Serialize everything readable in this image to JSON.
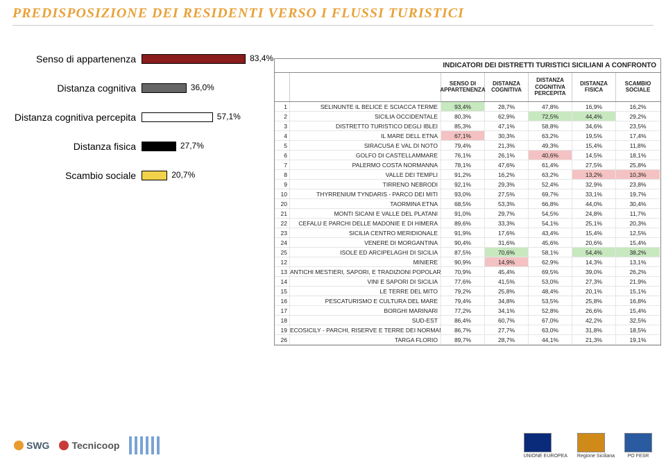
{
  "title": "PREDISPOSIZIONE DEI RESIDENTI VERSO I FLUSSI TURISTICI",
  "barchart": {
    "max": 100,
    "items": [
      {
        "label": "Senso di appartenenza",
        "value": 83.4,
        "text": "83,4%",
        "fill": "#8a1c1c"
      },
      {
        "label": "Distanza cognitiva",
        "value": 36.0,
        "text": "36,0%",
        "fill": "#666666"
      },
      {
        "label": "Distanza cognitiva percepita",
        "value": 57.1,
        "text": "57,1%",
        "fill": "#ffffff"
      },
      {
        "label": "Distanza fisica",
        "value": 27.7,
        "text": "27,7%",
        "fill": "#000000"
      },
      {
        "label": "Scambio sociale",
        "value": 20.7,
        "text": "20,7%",
        "fill": "#f2d24a"
      }
    ]
  },
  "table": {
    "title": "INDICATORI DEI DISTRETTI TURISTICI SICILIANI A CONFRONTO",
    "columns": [
      "",
      "",
      "SENSO DI APPARTENENZA",
      "DISTANZA COGNITIVA",
      "DISTANZA COGNITIVA PERCEPITA",
      "DISTANZA FISICA",
      "SCAMBIO SOCIALE"
    ],
    "hl_green": "#c8e8c0",
    "hl_red": "#f4c2c2",
    "rows": [
      {
        "n": 1,
        "name": "Selinunte il Belice e Sciacca Terme",
        "v": [
          "93,4%",
          "28,7%",
          "47,8%",
          "16,9%",
          "16,2%"
        ],
        "hl": {
          "0": "g"
        }
      },
      {
        "n": 2,
        "name": "Sicilia Occidentale",
        "v": [
          "80,3%",
          "62,9%",
          "72,5%",
          "44,4%",
          "29,2%"
        ],
        "hl": {
          "2": "g",
          "3": "g"
        }
      },
      {
        "n": 3,
        "name": "Distretto Turistico degli Iblei",
        "v": [
          "85,3%",
          "47,1%",
          "58,8%",
          "34,6%",
          "23,5%"
        ]
      },
      {
        "n": 4,
        "name": "Il Mare dell Etna",
        "v": [
          "67,1%",
          "30,3%",
          "63,2%",
          "19,5%",
          "17,4%"
        ],
        "hl": {
          "0": "r"
        }
      },
      {
        "n": 5,
        "name": "Siracusa e Val di Noto",
        "v": [
          "79,4%",
          "21,3%",
          "49,3%",
          "15,4%",
          "11,8%"
        ]
      },
      {
        "n": 6,
        "name": "Golfo di Castellammare",
        "v": [
          "76,1%",
          "26,1%",
          "40,6%",
          "14,5%",
          "18,1%"
        ],
        "hl": {
          "2": "r"
        }
      },
      {
        "n": 7,
        "name": "Palermo Costa Normanna",
        "v": [
          "78,1%",
          "47,6%",
          "61,4%",
          "27,5%",
          "25,8%"
        ]
      },
      {
        "n": 8,
        "name": "Valle dei Templi",
        "v": [
          "91,2%",
          "16,2%",
          "63,2%",
          "13,2%",
          "10,3%"
        ],
        "hl": {
          "3": "r",
          "4": "r"
        }
      },
      {
        "n": 9,
        "name": "Tirreno Nebrodi",
        "v": [
          "92,1%",
          "29,3%",
          "52,4%",
          "32,9%",
          "23,8%"
        ]
      },
      {
        "n": 10,
        "name": "Thyrrenium Tyndaris - Parco dei Miti",
        "v": [
          "93,0%",
          "27,5%",
          "69,7%",
          "33,1%",
          "19,7%"
        ]
      },
      {
        "n": 20,
        "name": "Taormina Etna",
        "v": [
          "68,5%",
          "53,3%",
          "66,8%",
          "44,0%",
          "30,4%"
        ]
      },
      {
        "n": 21,
        "name": "Monti Sicani e Valle del Platani",
        "v": [
          "91,0%",
          "29,7%",
          "54,5%",
          "24,8%",
          "11,7%"
        ]
      },
      {
        "n": 22,
        "name": "Cefalu e Parchi delle Madonie e di Himera",
        "v": [
          "89,6%",
          "33,3%",
          "54,1%",
          "25,1%",
          "20,3%"
        ]
      },
      {
        "n": 23,
        "name": "Sicilia Centro Meridionale",
        "v": [
          "91,9%",
          "17,6%",
          "43,4%",
          "15,4%",
          "12,5%"
        ]
      },
      {
        "n": 24,
        "name": "Venere di Morgantina",
        "v": [
          "90,4%",
          "31,6%",
          "45,6%",
          "20,6%",
          "15,4%"
        ]
      },
      {
        "n": 25,
        "name": "Isole ed Arcipelaghi di Sicilia",
        "v": [
          "87,5%",
          "70,6%",
          "58,1%",
          "54,4%",
          "38,2%"
        ],
        "hl": {
          "1": "g",
          "3": "g",
          "4": "g"
        }
      },
      {
        "n": 12,
        "name": "Miniere",
        "v": [
          "90,9%",
          "14,9%",
          "62,9%",
          "14,3%",
          "13,1%"
        ],
        "hl": {
          "1": "r"
        }
      },
      {
        "n": 13,
        "name": "Antichi Mestieri, Sapori, e Tradizioni Popolari Siciliane",
        "v": [
          "70,9%",
          "45,4%",
          "69,5%",
          "39,0%",
          "26,2%"
        ]
      },
      {
        "n": 14,
        "name": "Vini e Sapori di Sicilia",
        "v": [
          "77,6%",
          "41,5%",
          "53,0%",
          "27,3%",
          "21,9%"
        ]
      },
      {
        "n": 15,
        "name": "Le Terre del Mito",
        "v": [
          "79,2%",
          "25,8%",
          "48,4%",
          "20,1%",
          "15,1%"
        ]
      },
      {
        "n": 16,
        "name": "Pescaturismo e Cultura del Mare",
        "v": [
          "79,4%",
          "34,8%",
          "53,5%",
          "25,8%",
          "16,8%"
        ]
      },
      {
        "n": 17,
        "name": "Borghi Marinari",
        "v": [
          "77,2%",
          "34,1%",
          "52,8%",
          "26,6%",
          "15,4%"
        ]
      },
      {
        "n": 18,
        "name": "Sud-Est",
        "v": [
          "86,4%",
          "60,7%",
          "67,0%",
          "42,2%",
          "32,5%"
        ]
      },
      {
        "n": 19,
        "name": "Ecosicily - Parchi, Riserve e Terre dei Normanni",
        "v": [
          "86,7%",
          "27,7%",
          "63,0%",
          "31,8%",
          "18,5%"
        ]
      },
      {
        "n": 26,
        "name": "Targa Florio",
        "v": [
          "89,7%",
          "28,7%",
          "44,1%",
          "21,3%",
          "19,1%"
        ]
      }
    ]
  },
  "footer": {
    "left": [
      {
        "dot": "#e89c2e",
        "text": "SWG",
        "color": "#4a5a6a"
      },
      {
        "dot": "#c93a3a",
        "text": "Tecnicoop",
        "color": "#555"
      },
      {
        "stripes": true
      }
    ],
    "right": [
      {
        "label": "UNIONE EUROPEA",
        "color": "#0a2a7a"
      },
      {
        "label": "Regione Siciliana",
        "color": "#d08a1a"
      },
      {
        "label": "PO FESR",
        "color": "#2a5aa0"
      }
    ]
  }
}
